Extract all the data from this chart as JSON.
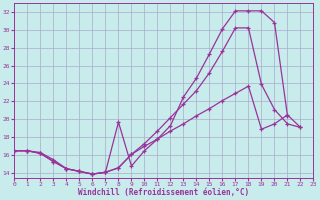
{
  "xlabel": "Windchill (Refroidissement éolien,°C)",
  "background_color": "#c8ecec",
  "grid_color": "#aaaacc",
  "line_color": "#993399",
  "xlim": [
    0,
    23
  ],
  "ylim": [
    13.5,
    33.0
  ],
  "xticks": [
    0,
    1,
    2,
    3,
    4,
    5,
    6,
    7,
    8,
    9,
    10,
    11,
    12,
    13,
    14,
    15,
    16,
    17,
    18,
    19,
    20,
    21,
    22,
    23
  ],
  "yticks": [
    14,
    16,
    18,
    20,
    22,
    24,
    26,
    28,
    30,
    32
  ],
  "curve1_x": [
    0,
    1,
    2,
    3,
    4,
    5,
    6,
    7,
    8,
    9,
    10,
    11,
    12,
    13,
    14,
    15,
    16,
    17,
    18,
    19,
    20,
    21
  ],
  "curve1_y": [
    16.5,
    16.5,
    16.3,
    15.5,
    14.5,
    14.2,
    13.9,
    14.1,
    19.7,
    14.8,
    16.5,
    17.8,
    19.3,
    22.5,
    24.6,
    27.3,
    30.1,
    32.1,
    32.1,
    32.1,
    30.8,
    20.4
  ],
  "curve2_x": [
    0,
    1,
    2,
    3,
    4,
    5,
    6,
    7,
    8,
    9,
    10,
    11,
    12,
    13,
    14,
    15,
    16,
    17,
    18,
    19,
    20,
    21,
    22
  ],
  "curve2_y": [
    16.5,
    16.5,
    16.2,
    15.3,
    14.5,
    14.2,
    13.9,
    14.1,
    14.6,
    16.1,
    17.3,
    18.7,
    20.2,
    21.7,
    23.2,
    25.2,
    27.6,
    30.2,
    30.2,
    23.9,
    21.1,
    19.5,
    19.1
  ],
  "curve3_x": [
    0,
    1,
    2,
    3,
    4,
    5,
    6,
    7,
    8,
    9,
    10,
    11,
    12,
    13,
    14,
    15,
    16,
    17,
    18,
    19,
    20,
    21,
    22
  ],
  "curve3_y": [
    16.5,
    16.5,
    16.2,
    15.3,
    14.5,
    14.2,
    13.9,
    14.1,
    14.6,
    16.1,
    17.0,
    17.8,
    18.7,
    19.5,
    20.4,
    21.2,
    22.1,
    22.9,
    23.7,
    18.9,
    19.5,
    20.5,
    19.1
  ]
}
